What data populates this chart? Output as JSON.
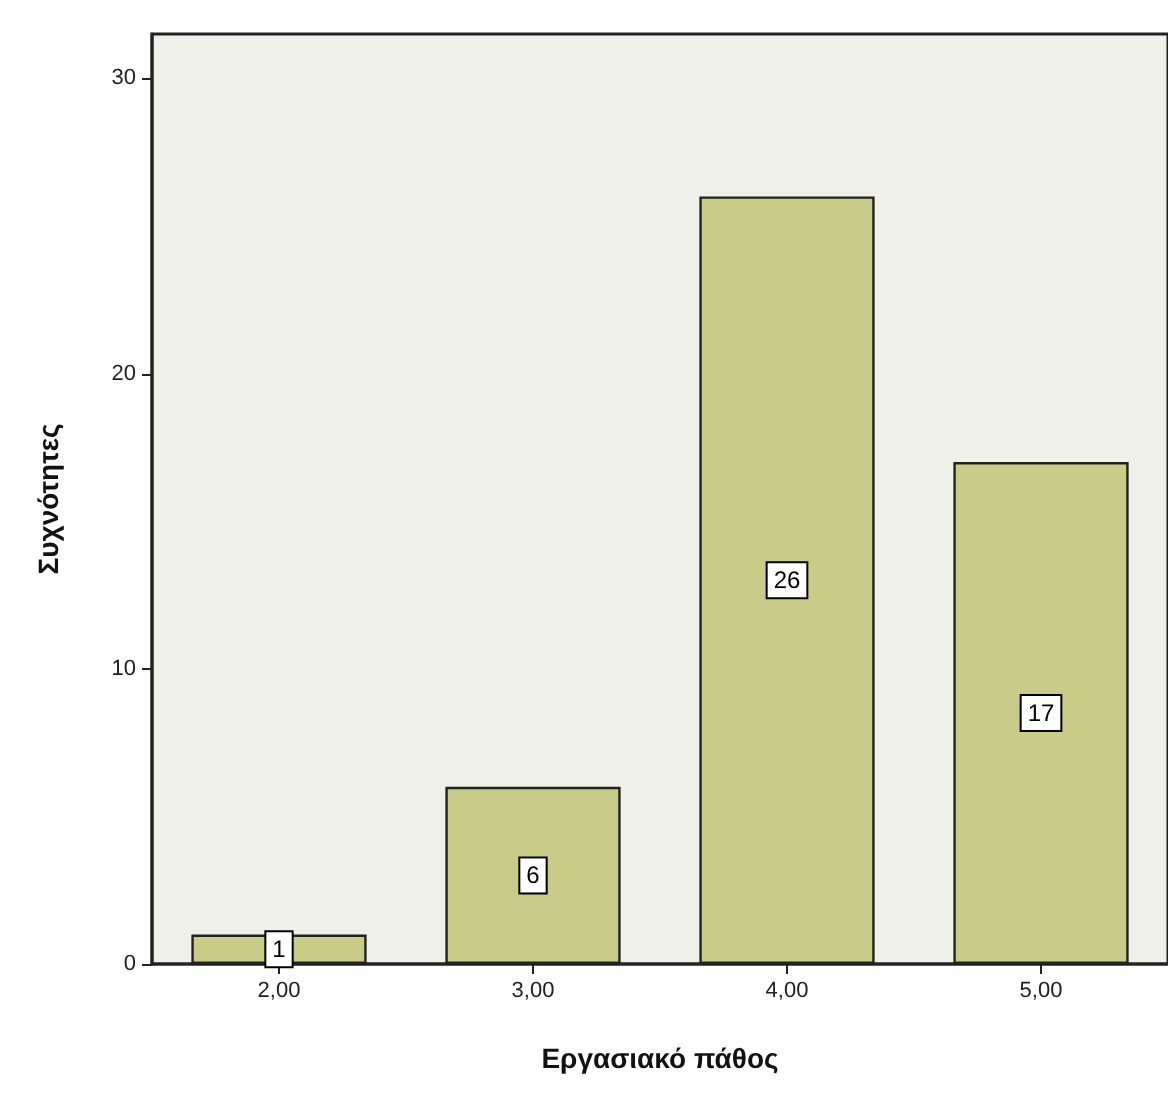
{
  "chart_data": {
    "type": "bar",
    "xlabel": "Εργασιακό πάθος",
    "ylabel": "Συχνότητες",
    "categories": [
      "2,00",
      "3,00",
      "4,00",
      "5,00"
    ],
    "values": [
      1,
      6,
      26,
      17
    ],
    "color": "#c9cc88",
    "ylim": [
      0,
      31.5
    ],
    "yticks": [
      0,
      10,
      20,
      30
    ],
    "data_labels": true
  }
}
